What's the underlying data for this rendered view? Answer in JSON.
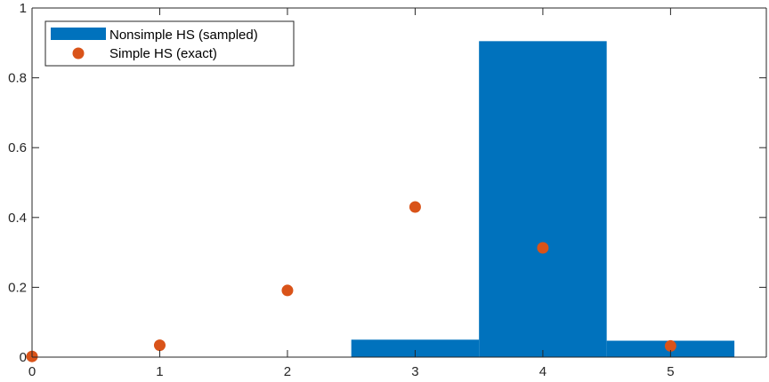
{
  "chart_data": {
    "type": "bar",
    "xlim": [
      0,
      5.75
    ],
    "ylim": [
      0,
      1
    ],
    "x_ticks": [
      "0",
      "1",
      "2",
      "3",
      "4",
      "5"
    ],
    "y_ticks": [
      "0",
      "0.2",
      "0.4",
      "0.6",
      "0.8",
      "1"
    ],
    "grid": false,
    "legend_placement": "top-left",
    "series": [
      {
        "name": "Nonsimple HS (sampled)",
        "kind": "bar",
        "color": "#0072BD",
        "bar_width": 1,
        "x": [
          0,
          1,
          2,
          3,
          4,
          5
        ],
        "values": [
          0,
          0,
          0,
          0.05,
          0.905,
          0.047
        ]
      },
      {
        "name": "Simple HS (exact)",
        "kind": "scatter",
        "color": "#D95319",
        "x": [
          0,
          1,
          2,
          3,
          4,
          5
        ],
        "values": [
          0.002,
          0.034,
          0.191,
          0.43,
          0.313,
          0.032
        ]
      }
    ]
  }
}
